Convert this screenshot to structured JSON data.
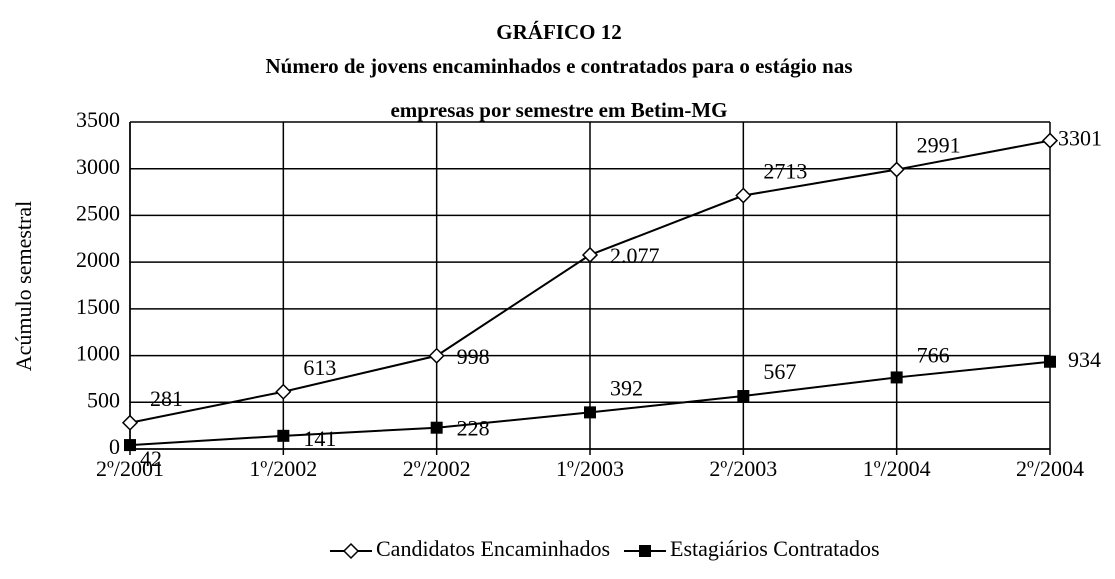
{
  "chart_data": {
    "type": "line",
    "title": [
      "GRÁFICO 12",
      "Número de jovens encaminhados e contratados para o estágio nas",
      "empresas por semestre em Betim-MG"
    ],
    "ylabel": "Acúmulo semestral",
    "categories": [
      "2º/2001",
      "1º/2002",
      "2º/2002",
      "1º/2003",
      "2º/2003",
      "1º/2004",
      "2º/2004"
    ],
    "series": [
      {
        "name": "Candidatos Encaminhados",
        "color": "#000000",
        "marker": "diamond",
        "values": [
          281,
          613,
          998,
          2077,
          2713,
          2991,
          3301
        ],
        "value_labels": [
          "281",
          "613",
          "998",
          "2.077",
          "2713",
          "2991",
          "3301"
        ]
      },
      {
        "name": "Estagiários Contratados",
        "color": "#000000",
        "marker": "square",
        "values": [
          42,
          141,
          228,
          392,
          567,
          766,
          934
        ]
      }
    ],
    "ylim": [
      0,
      3500
    ],
    "yticks": [
      0,
      500,
      1000,
      1500,
      2000,
      2500,
      3000,
      3500
    ],
    "grid": true,
    "legend": "bottom"
  }
}
